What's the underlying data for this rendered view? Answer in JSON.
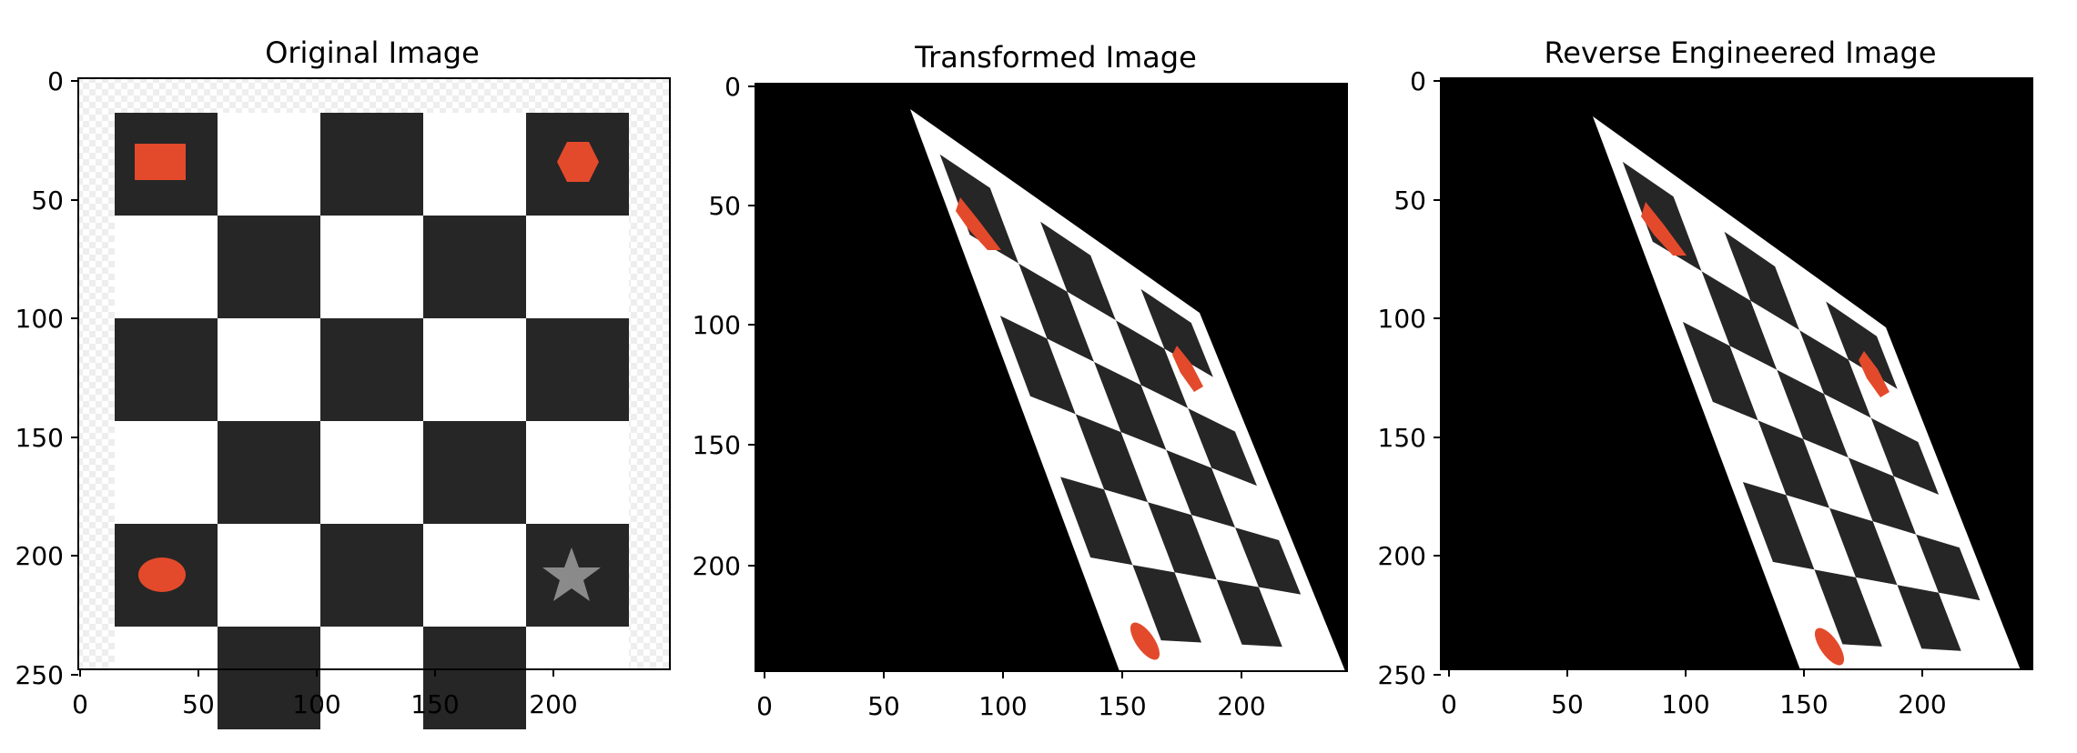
{
  "colors": {
    "square_dark": "#262626",
    "square_light": "#ffffff",
    "shape_red": "#e34a2b",
    "shape_star": "#8a8a8a",
    "background_checker": "#ececec",
    "canvas_black": "#000000"
  },
  "panels": [
    {
      "id": "original",
      "title": "Original Image",
      "x_ticks": [
        "0",
        "50",
        "100",
        "150",
        "200"
      ],
      "y_ticks": [
        "0",
        "50",
        "100",
        "150",
        "200",
        "250"
      ]
    },
    {
      "id": "transformed",
      "title": "Transformed Image",
      "x_ticks": [
        "0",
        "50",
        "100",
        "150",
        "200"
      ],
      "y_ticks": [
        "0",
        "50",
        "100",
        "150",
        "200"
      ]
    },
    {
      "id": "reverse",
      "title": "Reverse Engineered Image",
      "x_ticks": [
        "0",
        "50",
        "100",
        "150",
        "200"
      ],
      "y_ticks": [
        "0",
        "50",
        "100",
        "150",
        "200",
        "250"
      ]
    }
  ],
  "board": {
    "rows": 6,
    "cols": 5,
    "corner_shapes": [
      "rectangle",
      "hexagon",
      "ellipse",
      "star"
    ]
  }
}
